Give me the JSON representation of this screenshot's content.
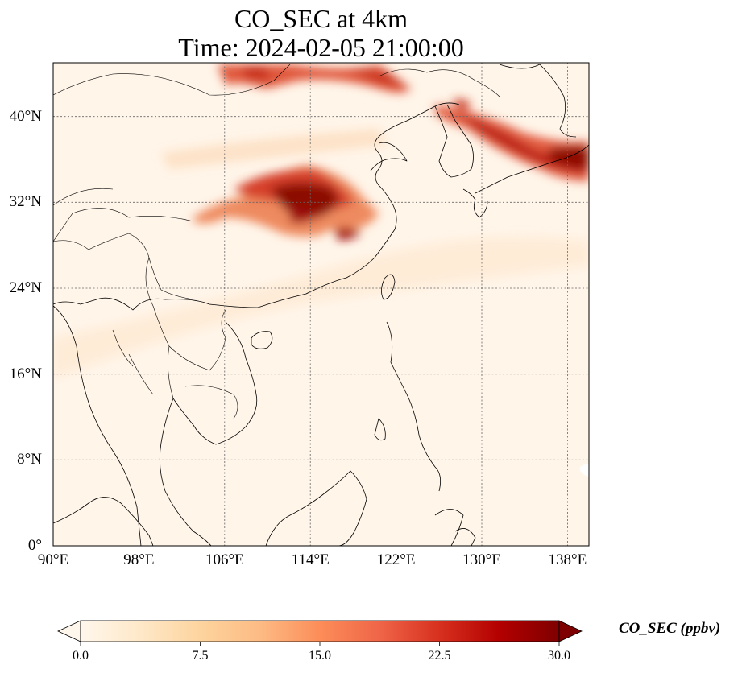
{
  "title_line1": "CO_SEC at 4km",
  "title_line2": "Time: 2024-02-05 21:00:00",
  "map": {
    "lon_range": [
      90,
      140
    ],
    "lat_range": [
      0,
      45
    ],
    "lon_ticks": [
      {
        "value": 90,
        "label": "90°E"
      },
      {
        "value": 98,
        "label": "98°E"
      },
      {
        "value": 106,
        "label": "106°E"
      },
      {
        "value": 114,
        "label": "114°E"
      },
      {
        "value": 122,
        "label": "122°E"
      },
      {
        "value": 130,
        "label": "130°E"
      },
      {
        "value": 138,
        "label": "138°E"
      }
    ],
    "lat_ticks": [
      {
        "value": 0,
        "label": "0°"
      },
      {
        "value": 8,
        "label": "8°N"
      },
      {
        "value": 16,
        "label": "16°N"
      },
      {
        "value": 24,
        "label": "24°N"
      },
      {
        "value": 32,
        "label": "32°N"
      },
      {
        "value": 40,
        "label": "40°N"
      }
    ],
    "gridlines": true,
    "background_color": "#fff5e9"
  },
  "colorbar": {
    "label": "CO_SEC (ppbv)",
    "min": 0.0,
    "max": 30.0,
    "extend": "both",
    "colormap": "OrRd",
    "ticks": [
      "0.0",
      "7.5",
      "15.0",
      "22.5",
      "30.0"
    ],
    "colors": [
      "#fff7ec",
      "#fee8c8",
      "#fdd49e",
      "#fdbb84",
      "#fc8d59",
      "#ef6548",
      "#d7301f",
      "#b30000",
      "#7f0000"
    ]
  }
}
